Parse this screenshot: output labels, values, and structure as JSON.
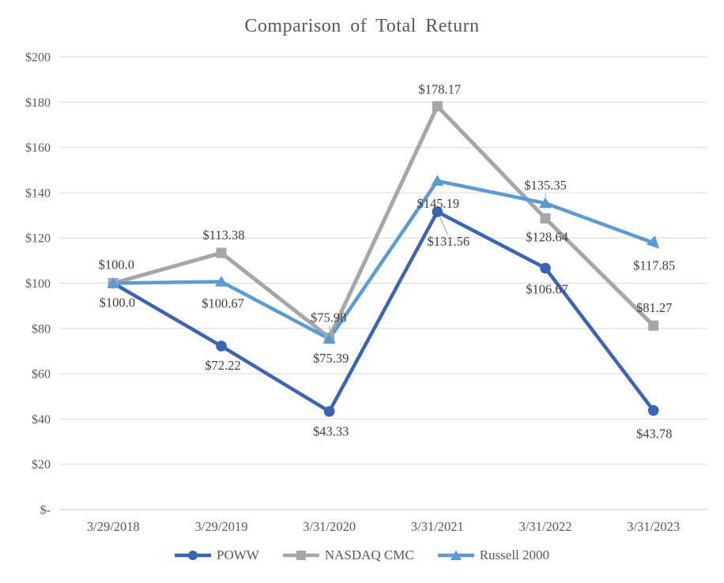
{
  "chart_data": {
    "type": "line",
    "title": "Comparison of Total Return",
    "categories": [
      "3/29/2018",
      "3/29/2019",
      "3/31/2020",
      "3/31/2021",
      "3/31/2022",
      "3/31/2023"
    ],
    "y_axis": {
      "ticks": [
        "$200",
        "$180",
        "$160",
        "$140",
        "$120",
        "$100",
        "$80",
        "$60",
        "$40",
        "$20",
        "$-"
      ],
      "min": 0,
      "max": 200,
      "step": 20
    },
    "xlabel": "",
    "ylabel": "",
    "grid": true,
    "legend_position": "bottom",
    "series": [
      {
        "name": "POWW",
        "color": "#3B64B5",
        "marker": "circle",
        "values": [
          100.0,
          72.22,
          43.33,
          131.56,
          106.67,
          43.78
        ],
        "data_labels": [
          "$100.0",
          "$72.22",
          "$43.33",
          "$131.56",
          "$106.67",
          "$43.78"
        ]
      },
      {
        "name": "NASDAQ CMC",
        "color": "#A6A6A6",
        "marker": "square",
        "values": [
          100.0,
          113.38,
          75.98,
          178.17,
          128.64,
          81.27
        ],
        "data_labels": [
          "$100.0",
          "$113.38",
          "$75.98",
          "$178.17",
          "$128.64",
          "$81.27"
        ]
      },
      {
        "name": "Russell 2000",
        "color": "#5B9BD5",
        "marker": "triangle",
        "values": [
          100.0,
          100.67,
          75.39,
          145.19,
          135.35,
          117.85
        ],
        "data_labels": [
          null,
          "$100.67",
          "$75.39",
          "$145.19",
          "$135.35",
          "$117.85"
        ]
      }
    ],
    "colors": {
      "gridline": "#D9D9D9",
      "axis_line": "#C9C9C9",
      "tick_text": "#595959",
      "data_label_text": "#404040",
      "title_text": "#595959",
      "leader_line": "#A0A0A0"
    }
  }
}
